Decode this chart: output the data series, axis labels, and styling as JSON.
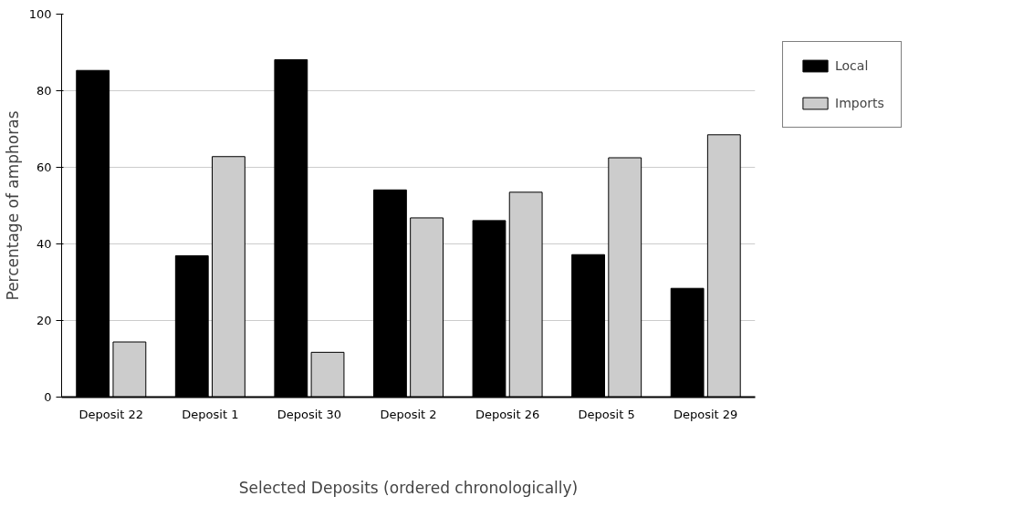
{
  "chart_data": {
    "type": "bar",
    "xlabel": "Selected Deposits (ordered chronologically)",
    "ylabel": "Percentage of amphoras",
    "categories": [
      "Deposit 22",
      "Deposit 1",
      "Deposit 30",
      "Deposit 2",
      "Deposit 26",
      "Deposit 5",
      "Deposit 29"
    ],
    "series": [
      {
        "name": "Local",
        "color": "#000000",
        "values": [
          85.3,
          36.9,
          88.1,
          54.1,
          46.1,
          37.2,
          28.4
        ]
      },
      {
        "name": "Imports",
        "color": "#cccccc",
        "values": [
          14.4,
          62.8,
          11.7,
          46.8,
          53.5,
          62.5,
          68.5
        ]
      }
    ],
    "ylim": [
      0,
      100
    ],
    "yticks": [
      0,
      20,
      40,
      60,
      80,
      100
    ],
    "grid": "y",
    "legend": "right"
  }
}
